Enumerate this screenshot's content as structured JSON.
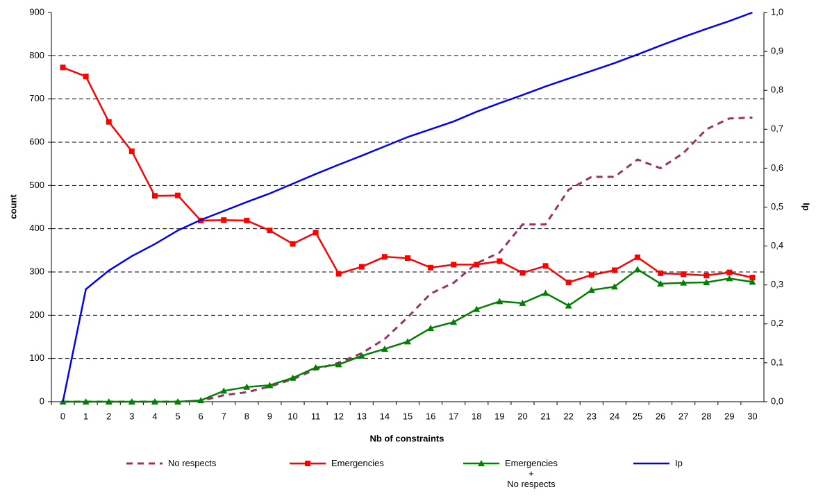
{
  "chart_data": {
    "type": "line",
    "xlabel": "Nb of constraints",
    "ylabel": "count",
    "y2label": "Ip",
    "categories": [
      0,
      1,
      2,
      3,
      4,
      5,
      6,
      7,
      8,
      9,
      10,
      11,
      12,
      13,
      14,
      15,
      16,
      17,
      18,
      19,
      20,
      21,
      22,
      23,
      24,
      25,
      26,
      27,
      28,
      29,
      30
    ],
    "ylim": [
      0,
      900
    ],
    "yticks": [
      0,
      100,
      200,
      300,
      400,
      500,
      600,
      700,
      800,
      900
    ],
    "y2lim": [
      0,
      1
    ],
    "y2ticks": [
      {
        "value": 0,
        "label": "0,0"
      },
      {
        "value": 0.1,
        "label": "0,1"
      },
      {
        "value": 0.2,
        "label": "0,2"
      },
      {
        "value": 0.3,
        "label": "0,3"
      },
      {
        "value": 0.4,
        "label": "0,4"
      },
      {
        "value": 0.5,
        "label": "0,5"
      },
      {
        "value": 0.6,
        "label": "0,6"
      },
      {
        "value": 0.7,
        "label": "0,7"
      },
      {
        "value": 0.8,
        "label": "0,8"
      },
      {
        "value": 0.9,
        "label": "0,9"
      },
      {
        "value": 1,
        "label": "1,0"
      }
    ],
    "grid": true,
    "series": [
      {
        "name": "No respects",
        "color": "#993366",
        "dashed": true,
        "marker": "none",
        "values": [
          0,
          0,
          0,
          0,
          0,
          0,
          2,
          15,
          22,
          35,
          52,
          75,
          90,
          112,
          145,
          195,
          250,
          275,
          320,
          345,
          410,
          410,
          490,
          520,
          520,
          560,
          540,
          575,
          630,
          655,
          657
        ]
      },
      {
        "name": "Emergencies",
        "color": "#ff0000",
        "dashed": false,
        "marker": "square",
        "values": [
          773,
          752,
          647,
          579,
          476,
          477,
          419,
          420,
          419,
          396,
          365,
          391,
          296,
          312,
          335,
          332,
          310,
          317,
          317,
          325,
          298,
          314,
          276,
          293,
          304,
          334,
          297,
          295,
          292,
          299,
          287
        ]
      },
      {
        "name": "Emergencies\n+\nNo respects",
        "color": "#008000",
        "dashed": false,
        "marker": "triangle",
        "values": [
          0,
          0,
          0,
          0,
          0,
          0,
          3,
          25,
          34,
          38,
          55,
          79,
          86,
          106,
          122,
          139,
          170,
          184,
          214,
          232,
          228,
          251,
          222,
          258,
          266,
          306,
          273,
          275,
          276,
          285,
          277
        ]
      },
      {
        "name": "Ip",
        "color": "#0000ff",
        "dashed": false,
        "marker": "none",
        "axis": "y2",
        "values": [
          0,
          0.289,
          0.337,
          0.374,
          0.405,
          0.44,
          0.467,
          0.49,
          0.513,
          0.535,
          0.56,
          0.585,
          0.609,
          0.632,
          0.656,
          0.68,
          0.7,
          0.72,
          0.745,
          0.767,
          0.788,
          0.81,
          0.83,
          0.85,
          0.87,
          0.892,
          0.915,
          0.937,
          0.958,
          0.978,
          1
        ]
      }
    ]
  }
}
